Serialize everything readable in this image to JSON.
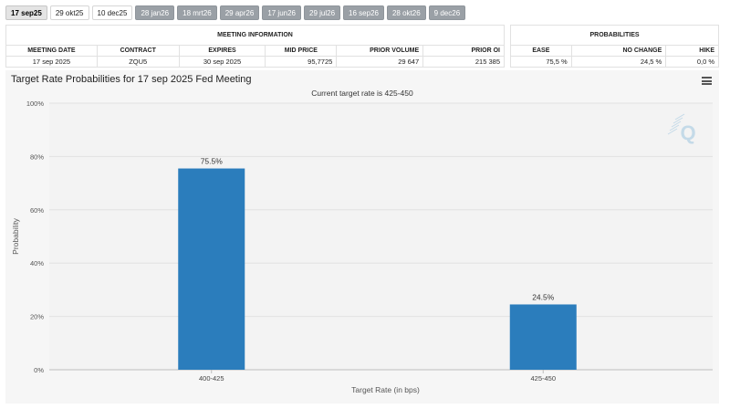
{
  "tabs": [
    {
      "label": "17 sep25",
      "style": "active"
    },
    {
      "label": "29 okt25",
      "style": "light"
    },
    {
      "label": "10 dec25",
      "style": "light"
    },
    {
      "label": "28 jan26",
      "style": "dark"
    },
    {
      "label": "18 mrt26",
      "style": "dark"
    },
    {
      "label": "29 apr26",
      "style": "dark"
    },
    {
      "label": "17 jun26",
      "style": "dark"
    },
    {
      "label": "29 jul26",
      "style": "dark"
    },
    {
      "label": "16 sep26",
      "style": "dark"
    },
    {
      "label": "28 okt26",
      "style": "dark"
    },
    {
      "label": "9 dec26",
      "style": "dark"
    }
  ],
  "meeting_info": {
    "group_title": "MEETING INFORMATION",
    "headers": [
      "MEETING DATE",
      "CONTRACT",
      "EXPIRES",
      "MID PRICE",
      "PRIOR VOLUME",
      "PRIOR OI"
    ],
    "values": [
      "17 sep 2025",
      "ZQU5",
      "30 sep 2025",
      "95,7725",
      "29 647",
      "215 385"
    ]
  },
  "probabilities": {
    "group_title": "PROBABILITIES",
    "headers": [
      "EASE",
      "NO CHANGE",
      "HIKE"
    ],
    "values": [
      "75,5 %",
      "24,5 %",
      "0,0 %"
    ]
  },
  "chart": {
    "title": "Target Rate Probabilities for 17 sep 2025 Fed Meeting",
    "subtitle": "Current target rate is 425-450",
    "bar_color": "#2b7dbc",
    "logo_letter": "Q"
  },
  "chart_data": {
    "type": "bar",
    "categories": [
      "400-425",
      "425-450"
    ],
    "values": [
      75.5,
      24.5
    ],
    "data_labels": [
      "75.5%",
      "24.5%"
    ],
    "xlabel": "Target Rate (in bps)",
    "ylabel": "Probability",
    "ylim": [
      0,
      100
    ],
    "yticks": [
      0,
      20,
      40,
      60,
      80,
      100
    ],
    "ytick_labels": [
      "0%",
      "20%",
      "40%",
      "60%",
      "80%",
      "100%"
    ],
    "grid": true,
    "legend": "none"
  }
}
